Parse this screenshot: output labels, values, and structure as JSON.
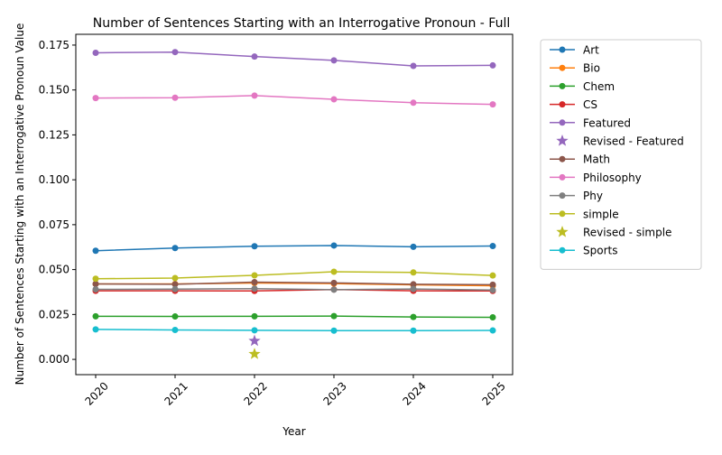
{
  "chart_data": {
    "type": "line",
    "title": "Number of Sentences Starting with an Interrogative Pronoun - Full",
    "xlabel": "Year",
    "ylabel": "Number of Sentences Starting with an Interrogative Pronoun Value",
    "x": [
      2020,
      2021,
      2022,
      2023,
      2024,
      2025
    ],
    "x_ticks": [
      "2020",
      "2021",
      "2022",
      "2023",
      "2024",
      "2025"
    ],
    "ylim": [
      -0.0085,
      0.181
    ],
    "y_ticks": [
      0.0,
      0.025,
      0.05,
      0.075,
      0.1,
      0.125,
      0.15,
      0.175
    ],
    "y_tick_labels": [
      "0.000",
      "0.025",
      "0.050",
      "0.075",
      "0.100",
      "0.125",
      "0.150",
      "0.175"
    ],
    "grid": false,
    "legend_position": "outside-right",
    "series": [
      {
        "name": "Art",
        "color": "#1f77b4",
        "marker": "circle",
        "values": [
          0.0605,
          0.062,
          0.063,
          0.0634,
          0.0627,
          0.0631
        ]
      },
      {
        "name": "Bio",
        "color": "#ff7f0e",
        "marker": "circle",
        "values": [
          0.042,
          0.042,
          0.0425,
          0.0422,
          0.0415,
          0.041
        ]
      },
      {
        "name": "Chem",
        "color": "#2ca02c",
        "marker": "circle",
        "values": [
          0.024,
          0.0239,
          0.024,
          0.0241,
          0.0236,
          0.0234
        ]
      },
      {
        "name": "CS",
        "color": "#d62728",
        "marker": "circle",
        "values": [
          0.0382,
          0.0382,
          0.0381,
          0.0389,
          0.0382,
          0.0381
        ]
      },
      {
        "name": "Featured",
        "color": "#9467bd",
        "marker": "circle",
        "values": [
          0.1707,
          0.1711,
          0.1686,
          0.1665,
          0.1634,
          0.1637
        ]
      },
      {
        "name": "Revised - Featured",
        "color": "#9467bd",
        "marker": "star",
        "points": [
          {
            "x": 2022,
            "y": 0.0103
          }
        ]
      },
      {
        "name": "Math",
        "color": "#8c564b",
        "marker": "circle",
        "values": [
          0.042,
          0.0418,
          0.043,
          0.0426,
          0.0418,
          0.0416
        ]
      },
      {
        "name": "Philosophy",
        "color": "#e377c2",
        "marker": "circle",
        "values": [
          0.1455,
          0.1457,
          0.1469,
          0.1448,
          0.1429,
          0.142
        ]
      },
      {
        "name": "Phy",
        "color": "#7f7f7f",
        "marker": "circle",
        "values": [
          0.039,
          0.0391,
          0.0394,
          0.0388,
          0.0392,
          0.0386
        ]
      },
      {
        "name": "simple",
        "color": "#bcbd22",
        "marker": "circle",
        "values": [
          0.0449,
          0.0453,
          0.0468,
          0.0488,
          0.0484,
          0.0467
        ]
      },
      {
        "name": "Revised - simple",
        "color": "#bcbd22",
        "marker": "star",
        "points": [
          {
            "x": 2022,
            "y": 0.003
          }
        ]
      },
      {
        "name": "Sports",
        "color": "#17becf",
        "marker": "circle",
        "values": [
          0.0167,
          0.0164,
          0.0162,
          0.016,
          0.016,
          0.0161
        ]
      }
    ]
  }
}
